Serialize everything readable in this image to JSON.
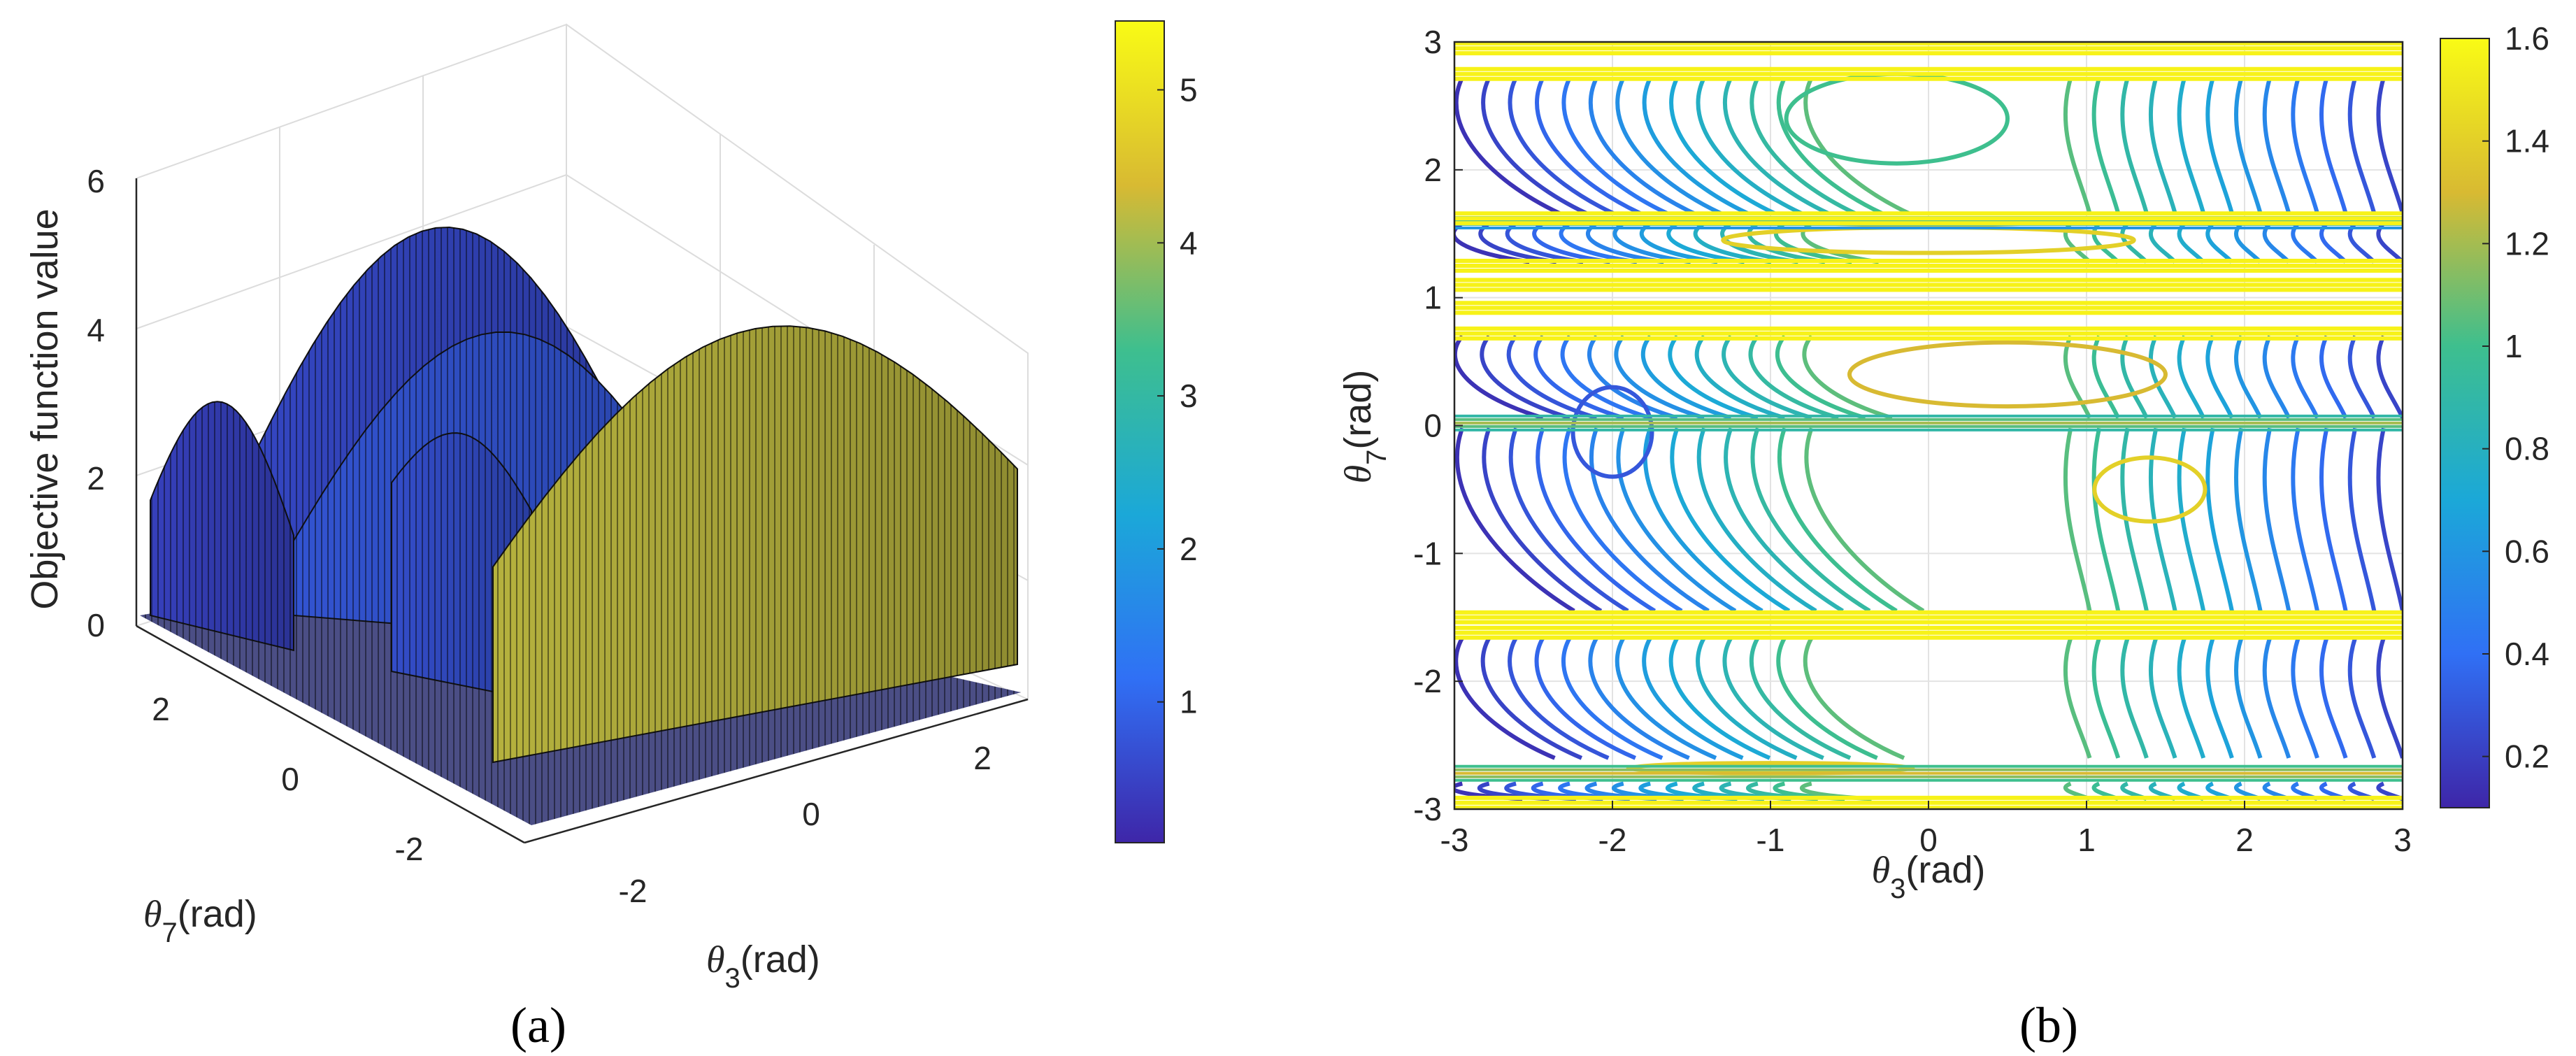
{
  "chart_data": [
    {
      "id": "a",
      "type": "surface",
      "caption": "(a)",
      "zlabel": "Objective function value",
      "xlabel_sym": "θ",
      "xlabel_sub": "3",
      "xlabel_unit": "(rad)",
      "ylabel_sym": "θ",
      "ylabel_sub": "7",
      "ylabel_unit": "(rad)",
      "zticks": [
        "0",
        "2",
        "4",
        "6"
      ],
      "xticks": [
        "-2",
        "0",
        "2"
      ],
      "yticks": [
        "-2",
        "0",
        "2"
      ],
      "zlim": [
        0,
        6
      ],
      "xlim": [
        -3,
        3
      ],
      "ylim": [
        -3,
        3
      ],
      "colorbar": {
        "ticks": [
          "1",
          "2",
          "3",
          "4",
          "5"
        ],
        "values": [
          1,
          2,
          3,
          4,
          5
        ],
        "range": [
          0.08,
          5.45
        ]
      },
      "walls": [
        {
          "name": "yellow-arch-wall",
          "value": 4.2,
          "peak": 4.0,
          "color": "#c9ad2c"
        },
        {
          "name": "blue-arch-back",
          "value": 0.6,
          "peak": 4.8,
          "color": "#3b3fa8"
        },
        {
          "name": "blue-arch-mid",
          "value": 0.8,
          "peak": 4.3,
          "color": "#3e48b2"
        },
        {
          "name": "blue-left-block",
          "value": 0.5,
          "peak": 2.4,
          "color": "#3a3ca2"
        },
        {
          "name": "blue-front-block",
          "value": 0.7,
          "peak": 1.9,
          "color": "#3c47ae"
        }
      ]
    },
    {
      "id": "b",
      "type": "contour",
      "caption": "(b)",
      "xlabel_sym": "θ",
      "xlabel_sub": "3",
      "xlabel_unit": "(rad)",
      "ylabel_sym": "θ",
      "ylabel_sub": "7",
      "ylabel_unit": "(rad)",
      "xlim": [
        -3,
        3
      ],
      "ylim": [
        -3,
        3
      ],
      "xticks": [
        "-3",
        "-2",
        "-1",
        "0",
        "1",
        "2",
        "3"
      ],
      "yticks": [
        "3",
        "2",
        "1",
        "0",
        "-1",
        "-2",
        "-3"
      ],
      "grid": true,
      "colorbar": {
        "ticks": [
          "0.2",
          "0.4",
          "0.6",
          "0.8",
          "1",
          "1.2",
          "1.4",
          "1.6"
        ],
        "values": [
          0.2,
          0.4,
          0.6,
          0.8,
          1.0,
          1.2,
          1.4,
          1.6
        ],
        "range": [
          0.1,
          1.6
        ]
      },
      "yellow_bands": [
        2.95,
        2.75,
        1.62,
        1.25,
        1.1,
        0.92,
        0.72,
        -1.5,
        -1.62,
        -2.95
      ],
      "minor_bands": [
        {
          "y": 1.6,
          "value": 0.9
        },
        {
          "y": 0.02,
          "value": 1.2
        },
        {
          "y": -2.72,
          "value": 1.3
        }
      ],
      "closed_contours": [
        {
          "cx": -0.2,
          "cy": 2.4,
          "rx": 0.7,
          "ry": 0.35,
          "value": 1.0
        },
        {
          "cx": 1.4,
          "cy": -0.5,
          "rx": 0.35,
          "ry": 0.25,
          "value": 1.4
        },
        {
          "cx": 0.0,
          "cy": 1.45,
          "rx": 1.3,
          "ry": 0.1,
          "value": 1.4
        },
        {
          "cx": 0.5,
          "cy": 0.4,
          "rx": 1.0,
          "ry": 0.25,
          "value": 1.3
        },
        {
          "cx": -1.0,
          "cy": -2.68,
          "rx": 0.9,
          "ry": 0.04,
          "value": 1.4
        },
        {
          "cx": -2.0,
          "cy": -0.05,
          "rx": 0.25,
          "ry": 0.35,
          "value": 0.3
        }
      ]
    }
  ]
}
